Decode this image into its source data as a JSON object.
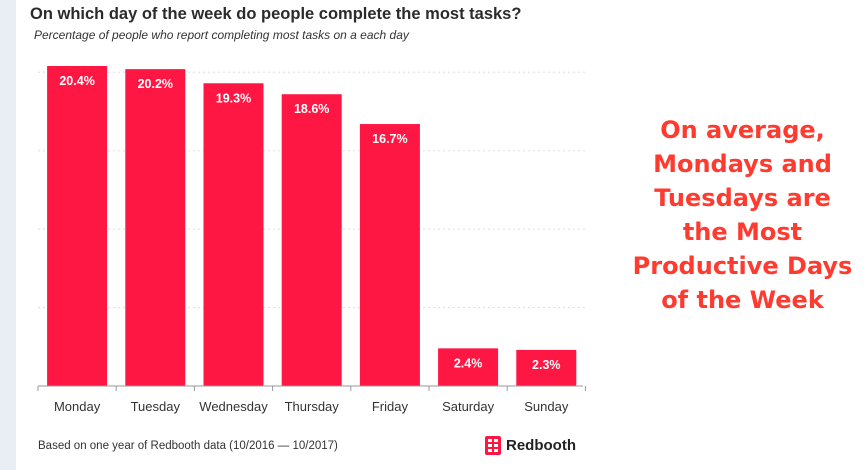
{
  "header": {
    "title": "On which day of the week do people complete the most tasks?",
    "subtitle": "Percentage of people who report completing most tasks on a each day"
  },
  "footer": {
    "note": "Based on one year of Redbooth data (10/2016 — 10/2017)",
    "brand_name": "Redbooth",
    "brand_icon": "redbooth-logo-icon"
  },
  "callout": {
    "text": "On average, Mondays and Tuesdays are the Most Productive Days of the Week"
  },
  "colors": {
    "bar": "#ff1744",
    "bar_label": "#ffffff",
    "callout": "#ff3b30",
    "gridline": "#dddddd"
  },
  "chart_data": {
    "type": "bar",
    "title": "On which day of the week do people complete the most tasks?",
    "subtitle": "Percentage of people who report completing most tasks on a each day",
    "xlabel": "",
    "ylabel": "",
    "categories": [
      "Monday",
      "Tuesday",
      "Wednesday",
      "Thursday",
      "Friday",
      "Saturday",
      "Sunday"
    ],
    "values": [
      20.4,
      20.2,
      19.3,
      18.6,
      16.7,
      2.4,
      2.3
    ],
    "value_labels": [
      "20.4%",
      "20.2%",
      "19.3%",
      "18.6%",
      "16.7%",
      "2.4%",
      "2.3%"
    ],
    "ylim": [
      0,
      20.4
    ],
    "grid": true,
    "legend": "none"
  }
}
